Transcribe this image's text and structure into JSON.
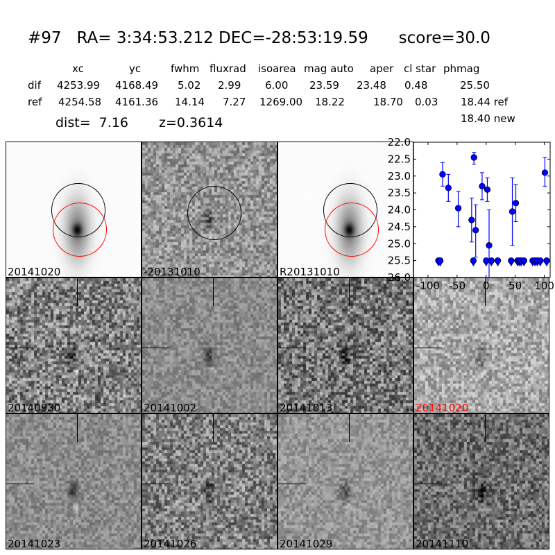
{
  "header": {
    "title": "#97   RA= 3:34:53.212 DEC=-28:53:19.59      score=30.0",
    "columns": [
      "xc",
      "yc",
      "fwhm",
      "fluxrad",
      "isoarea",
      "mag auto",
      "aper",
      "cl star",
      "phmag"
    ],
    "dif": {
      "label": "dif",
      "values": [
        "4253.99",
        "4168.49",
        "5.02",
        "2.99",
        "6.00",
        "23.59",
        "23.48",
        "0.48",
        "25.50"
      ]
    },
    "ref": {
      "label": "ref",
      "values": [
        "4254.58",
        "4161.36",
        "14.14",
        "7.27",
        "1269.00",
        "18.22",
        "18.70",
        "0.03",
        "18.44 ref"
      ]
    },
    "new_phmag": "18.40 new",
    "dist": "dist=  7.16",
    "z": "z=0.3614"
  },
  "panels": [
    {
      "label": "20141020",
      "kind": "galaxy",
      "circles": [
        "black",
        "red"
      ]
    },
    {
      "label": "-20131010",
      "kind": "diff",
      "circles": [
        "black"
      ]
    },
    {
      "label": "R20131010",
      "kind": "galaxy",
      "circles": [
        "black",
        "red"
      ]
    },
    {
      "label": "20140930",
      "kind": "diff"
    },
    {
      "label": "20141002",
      "kind": "diff"
    },
    {
      "label": "20141013",
      "kind": "diff"
    },
    {
      "label": "20141020",
      "kind": "diff",
      "label_color": "#ff0000"
    },
    {
      "label": "20141023",
      "kind": "diff"
    },
    {
      "label": "20141026",
      "kind": "diff"
    },
    {
      "label": "20141029",
      "kind": "diff"
    },
    {
      "label": "20141110",
      "kind": "diff"
    }
  ],
  "chart_data": {
    "type": "scatter",
    "title": "",
    "xlabel": "",
    "ylabel": "",
    "xlim": [
      -125,
      110
    ],
    "ylim": [
      26.0,
      22.0
    ],
    "y_inverted": true,
    "xticks": [
      -100,
      -50,
      0,
      50,
      100
    ],
    "yticks": [
      22.0,
      22.5,
      23.0,
      23.5,
      24.0,
      24.5,
      25.0,
      25.5,
      26.0
    ],
    "color": "#0000ff",
    "detections": [
      {
        "x": -75,
        "y": 22.95,
        "lo": 22.6,
        "hi": 23.3
      },
      {
        "x": -65,
        "y": 23.35,
        "lo": 22.95,
        "hi": 23.75
      },
      {
        "x": -48,
        "y": 23.95,
        "lo": 23.45,
        "hi": 24.5
      },
      {
        "x": -25,
        "y": 24.3,
        "lo": 23.65,
        "hi": 24.95
      },
      {
        "x": -21,
        "y": 22.45,
        "lo": 22.3,
        "hi": 22.65
      },
      {
        "x": -18,
        "y": 24.6,
        "lo": 23.85,
        "hi": 25.4
      },
      {
        "x": -7,
        "y": 23.3,
        "lo": 22.9,
        "hi": 23.7
      },
      {
        "x": 2,
        "y": 23.4,
        "lo": 23.05,
        "hi": 23.75
      },
      {
        "x": 5,
        "y": 25.05,
        "lo": 24.0,
        "hi": 26.0
      },
      {
        "x": 45,
        "y": 24.05,
        "lo": 23.05,
        "hi": 25.05
      },
      {
        "x": 51,
        "y": 23.8,
        "lo": 23.25,
        "hi": 24.35
      },
      {
        "x": 101,
        "y": 22.9,
        "lo": 22.45,
        "hi": 23.3
      }
    ],
    "upper_limits": {
      "y": 25.5,
      "x": [
        -82,
        -79,
        -22,
        0,
        9,
        20,
        43,
        54,
        57,
        60,
        65,
        80,
        84,
        88,
        93,
        104
      ]
    }
  }
}
